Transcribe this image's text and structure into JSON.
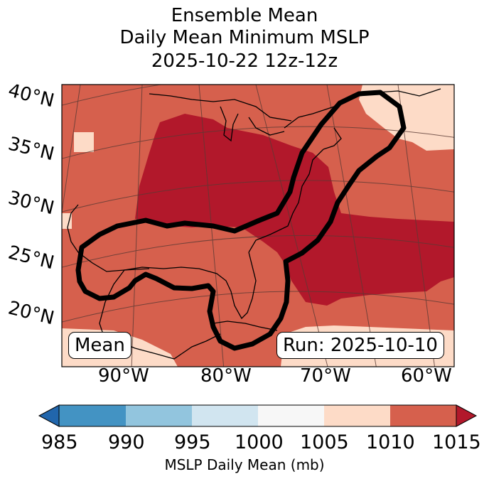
{
  "title": {
    "line1": "Ensemble Mean",
    "line2": "Daily Mean Minimum MSLP",
    "line3": "2025-10-22 12z-12z"
  },
  "lat_labels": [
    "40°N",
    "35°N",
    "30°N",
    "25°N",
    "20°N"
  ],
  "lon_labels": [
    "90°W",
    "80°W",
    "70°W",
    "60°W"
  ],
  "annotations": {
    "left_box": "Mean",
    "right_box": "Run: 2025-10-10"
  },
  "colorbar": {
    "ticks": [
      "985",
      "990",
      "995",
      "1000",
      "1005",
      "1010",
      "1015"
    ],
    "label": "MSLP Daily Mean (mb)",
    "colors": {
      "under": "#2166ac",
      "985_990": "#4393c3",
      "990_995": "#92c5de",
      "995_1000": "#d1e5f0",
      "1000_1005": "#f7f7f7",
      "1005_1010": "#fddbc7",
      "1010_1015": "#d6604d",
      "over": "#b2182b"
    }
  }
}
